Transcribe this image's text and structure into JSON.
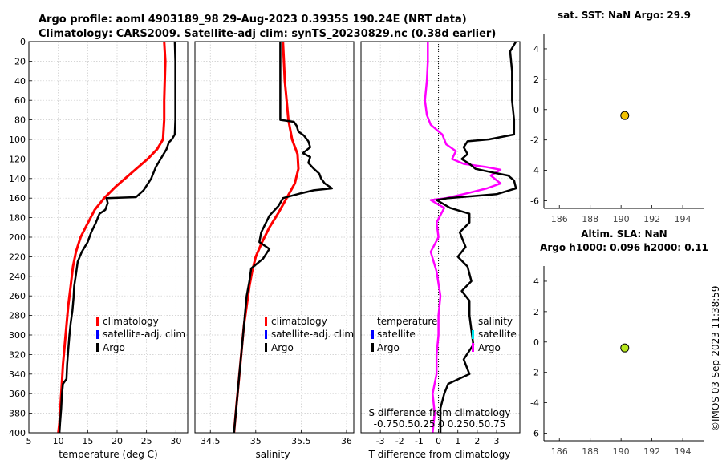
{
  "figure": {
    "title_line1": "Argo profile: aoml 4903189_98 29-Aug-2023 0.3935S 190.24E (NRT data)",
    "title_line2": "Climatology: CARS2009. Satellite-adj clim: synTS_20230829.nc (0.38d earlier)",
    "sst_title": "sat. SST: NaN Argo: 29.9",
    "sla_title1": "Altim. SLA: NaN",
    "sla_title2": "Argo h1000: 0.096 h2000: 0.11",
    "stamp": "©IMOS 03-Sep-2023 11:38:59"
  },
  "colors": {
    "climatology": "#ff0000",
    "satellite": "#0000ff",
    "argo": "#000000",
    "sat_cyan": "#00e5ee",
    "s_argo": "#ff00ff",
    "sst_dot": "#f2c200",
    "sla_dot": "#b5e61d"
  },
  "chart_data": [
    {
      "type": "line",
      "panel": "temperature",
      "xlabel": "temperature (deg C)",
      "ylabel": "",
      "xlim": [
        5,
        32
      ],
      "ylim": [
        400,
        0
      ],
      "x_ticks": [
        5,
        10,
        15,
        20,
        25,
        30
      ],
      "y_ticks": [
        0,
        20,
        40,
        60,
        80,
        100,
        120,
        140,
        160,
        180,
        200,
        220,
        240,
        260,
        280,
        300,
        320,
        340,
        360,
        380,
        400
      ],
      "grid": true,
      "legend": [
        "climatology",
        "satellite-adj. clim",
        "Argo"
      ],
      "series": [
        {
          "name": "climatology",
          "points": [
            [
              28.0,
              0
            ],
            [
              28.2,
              20
            ],
            [
              28.1,
              40
            ],
            [
              28.0,
              60
            ],
            [
              28.0,
              80
            ],
            [
              27.8,
              100
            ],
            [
              26.8,
              110
            ],
            [
              25.2,
              120
            ],
            [
              22.3,
              135
            ],
            [
              19.8,
              148
            ],
            [
              17.8,
              160
            ],
            [
              16.2,
              172
            ],
            [
              14.8,
              188
            ],
            [
              13.8,
              200
            ],
            [
              13.0,
              215
            ],
            [
              12.5,
              230
            ],
            [
              12.1,
              250
            ],
            [
              11.7,
              270
            ],
            [
              11.4,
              290
            ],
            [
              11.1,
              310
            ],
            [
              10.8,
              330
            ],
            [
              10.6,
              350
            ],
            [
              10.4,
              370
            ],
            [
              10.2,
              390
            ],
            [
              10.0,
              400
            ]
          ]
        },
        {
          "name": "Argo",
          "points": [
            [
              29.8,
              0
            ],
            [
              29.9,
              20
            ],
            [
              29.9,
              40
            ],
            [
              29.9,
              60
            ],
            [
              29.9,
              80
            ],
            [
              29.8,
              95
            ],
            [
              29.3,
              100
            ],
            [
              28.8,
              103
            ],
            [
              28.4,
              110
            ],
            [
              27.6,
              118
            ],
            [
              26.6,
              128
            ],
            [
              25.8,
              140
            ],
            [
              24.5,
              152
            ],
            [
              23.2,
              159
            ],
            [
              18.2,
              160
            ],
            [
              18.4,
              165
            ],
            [
              18.0,
              172
            ],
            [
              17.0,
              176
            ],
            [
              16.4,
              185
            ],
            [
              15.6,
              195
            ],
            [
              15.0,
              205
            ],
            [
              14.0,
              215
            ],
            [
              13.3,
              225
            ],
            [
              13.0,
              238
            ],
            [
              12.7,
              250
            ],
            [
              12.6,
              262
            ],
            [
              12.4,
              275
            ],
            [
              12.1,
              288
            ],
            [
              11.9,
              300
            ],
            [
              11.7,
              315
            ],
            [
              11.5,
              330
            ],
            [
              11.4,
              345
            ],
            [
              10.8,
              350
            ],
            [
              10.6,
              362
            ],
            [
              10.5,
              375
            ],
            [
              10.3,
              390
            ],
            [
              10.2,
              400
            ]
          ]
        }
      ]
    },
    {
      "type": "line",
      "panel": "salinity",
      "xlabel": "salinity",
      "xlim": [
        34.33,
        36.08
      ],
      "ylim": [
        400,
        0
      ],
      "x_ticks": [
        34.5,
        35,
        35.5,
        36
      ],
      "grid": true,
      "legend": [
        "climatology",
        "satellite-adj. clim",
        "Argo"
      ],
      "series": [
        {
          "name": "climatology",
          "points": [
            [
              35.3,
              0
            ],
            [
              35.31,
              20
            ],
            [
              35.32,
              40
            ],
            [
              35.34,
              60
            ],
            [
              35.36,
              80
            ],
            [
              35.4,
              100
            ],
            [
              35.46,
              115
            ],
            [
              35.47,
              130
            ],
            [
              35.43,
              145
            ],
            [
              35.34,
              160
            ],
            [
              35.25,
              175
            ],
            [
              35.15,
              190
            ],
            [
              35.07,
              205
            ],
            [
              35.0,
              220
            ],
            [
              34.96,
              235
            ],
            [
              34.93,
              250
            ],
            [
              34.9,
              270
            ],
            [
              34.87,
              290
            ],
            [
              34.85,
              310
            ],
            [
              34.83,
              330
            ],
            [
              34.81,
              350
            ],
            [
              34.79,
              370
            ],
            [
              34.77,
              390
            ],
            [
              34.76,
              400
            ]
          ]
        },
        {
          "name": "Argo",
          "points": [
            [
              35.27,
              0
            ],
            [
              35.27,
              20
            ],
            [
              35.27,
              40
            ],
            [
              35.27,
              60
            ],
            [
              35.27,
              80
            ],
            [
              35.42,
              82
            ],
            [
              35.45,
              86
            ],
            [
              35.47,
              92
            ],
            [
              35.53,
              96
            ],
            [
              35.58,
              102
            ],
            [
              35.6,
              108
            ],
            [
              35.52,
              114
            ],
            [
              35.6,
              118
            ],
            [
              35.58,
              124
            ],
            [
              35.64,
              130
            ],
            [
              35.7,
              135
            ],
            [
              35.72,
              140
            ],
            [
              35.76,
              145
            ],
            [
              35.84,
              150
            ],
            [
              35.64,
              152
            ],
            [
              35.5,
              155
            ],
            [
              35.3,
              160
            ],
            [
              35.25,
              168
            ],
            [
              35.15,
              178
            ],
            [
              35.06,
              195
            ],
            [
              35.04,
              205
            ],
            [
              35.15,
              212
            ],
            [
              35.08,
              222
            ],
            [
              34.95,
              232
            ],
            [
              34.93,
              245
            ],
            [
              34.9,
              260
            ],
            [
              34.88,
              280
            ],
            [
              34.86,
              300
            ],
            [
              34.84,
              320
            ],
            [
              34.82,
              340
            ],
            [
              34.8,
              360
            ],
            [
              34.78,
              380
            ],
            [
              34.76,
              400
            ]
          ]
        }
      ]
    },
    {
      "type": "line",
      "panel": "difference",
      "xlabel": "T difference from climatology",
      "top_label_line1": "S difference from climatology",
      "top_label_line2": "-0.750.50.25  0  0.250.50.75",
      "xlim": [
        -4.0,
        4.2
      ],
      "ylim": [
        400,
        0
      ],
      "x_ticks": [
        -3,
        -2,
        -1,
        0,
        1,
        2,
        3
      ],
      "grid": true,
      "legend_left_title": "temperature",
      "legend_right_title": "salinity",
      "legend_left": [
        "satellite",
        "Argo"
      ],
      "legend_right": [
        "satellite",
        "Argo"
      ],
      "series": [
        {
          "name": "T Argo",
          "points": [
            [
              4.0,
              0
            ],
            [
              3.7,
              10
            ],
            [
              3.8,
              30
            ],
            [
              3.8,
              60
            ],
            [
              3.9,
              80
            ],
            [
              3.9,
              95
            ],
            [
              2.6,
              100
            ],
            [
              1.5,
              102
            ],
            [
              1.3,
              108
            ],
            [
              1.5,
              115
            ],
            [
              1.2,
              120
            ],
            [
              1.6,
              125
            ],
            [
              1.9,
              130
            ],
            [
              2.6,
              133
            ],
            [
              3.6,
              137
            ],
            [
              3.9,
              142
            ],
            [
              4.0,
              150
            ],
            [
              3.0,
              156
            ],
            [
              0.5,
              160
            ],
            [
              -0.1,
              162
            ],
            [
              0.6,
              170
            ],
            [
              1.6,
              176
            ],
            [
              1.6,
              185
            ],
            [
              1.1,
              195
            ],
            [
              1.4,
              210
            ],
            [
              1.0,
              220
            ],
            [
              1.5,
              230
            ],
            [
              1.7,
              245
            ],
            [
              1.2,
              255
            ],
            [
              1.6,
              265
            ],
            [
              1.6,
              280
            ],
            [
              1.7,
              295
            ],
            [
              1.8,
              310
            ],
            [
              1.3,
              325
            ],
            [
              1.6,
              340
            ],
            [
              0.5,
              350
            ],
            [
              0.3,
              360
            ],
            [
              0.1,
              375
            ],
            [
              0.1,
              390
            ],
            [
              0.1,
              400
            ]
          ]
        },
        {
          "name": "S Argo",
          "points": [
            [
              -0.55,
              0
            ],
            [
              -0.55,
              20
            ],
            [
              -0.6,
              40
            ],
            [
              -0.7,
              60
            ],
            [
              -0.6,
              75
            ],
            [
              -0.4,
              85
            ],
            [
              0.2,
              95
            ],
            [
              0.4,
              105
            ],
            [
              0.9,
              112
            ],
            [
              0.7,
              120
            ],
            [
              1.3,
              125
            ],
            [
              2.4,
              128
            ],
            [
              3.2,
              131
            ],
            [
              2.7,
              137
            ],
            [
              3.2,
              145
            ],
            [
              2.5,
              150
            ],
            [
              1.5,
              155
            ],
            [
              0.4,
              160
            ],
            [
              -0.4,
              162
            ],
            [
              0.3,
              170
            ],
            [
              -0.1,
              185
            ],
            [
              0.0,
              200
            ],
            [
              -0.4,
              215
            ],
            [
              -0.1,
              235
            ],
            [
              0.1,
              260
            ],
            [
              0.0,
              280
            ],
            [
              0.0,
              300
            ],
            [
              -0.1,
              320
            ],
            [
              -0.1,
              340
            ],
            [
              -0.3,
              360
            ],
            [
              -0.2,
              380
            ],
            [
              -0.3,
              400
            ]
          ]
        }
      ]
    },
    {
      "type": "scatter",
      "panel": "sst",
      "xlim": [
        185,
        195.4
      ],
      "ylim": [
        -6.5,
        5.0
      ],
      "x_ticks": [
        186,
        188,
        190,
        192,
        194
      ],
      "y_ticks": [
        -6,
        -4,
        -2,
        0,
        2,
        4
      ],
      "points": [
        {
          "x": 190.24,
          "y": -0.39
        }
      ]
    },
    {
      "type": "scatter",
      "panel": "sla",
      "xlim": [
        185,
        195.4
      ],
      "ylim": [
        -6.5,
        5.0
      ],
      "x_ticks": [
        186,
        188,
        190,
        192,
        194
      ],
      "y_ticks": [
        -6,
        -4,
        -2,
        0,
        2,
        4
      ],
      "points": [
        {
          "x": 190.24,
          "y": -0.39
        }
      ]
    }
  ]
}
